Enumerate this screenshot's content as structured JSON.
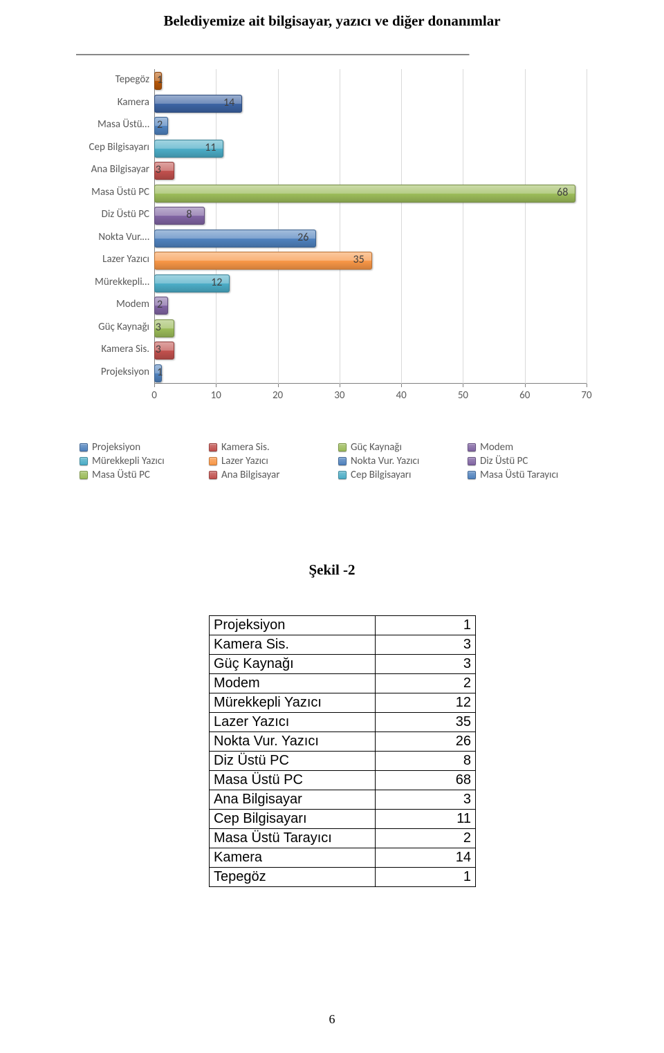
{
  "title": "Belediyemize ait bilgisayar, yazıcı ve diğer donanımlar",
  "figure_caption": "Şekil -2",
  "page_number": "6",
  "chart": {
    "type": "bar-horizontal",
    "xlim": [
      0,
      70
    ],
    "xtick_step": 10,
    "xticks": [
      "0",
      "10",
      "20",
      "30",
      "40",
      "50",
      "60",
      "70"
    ],
    "background_color": "#ffffff",
    "grid_color": "#d9d9d9",
    "axis_color": "#808080",
    "text_color": "#595959",
    "label_fontsize": 15,
    "datalabel_fontsize": 16,
    "datalabel_color": "#404040",
    "categories": [
      {
        "label": "Tepegöz",
        "value": 1,
        "color": "#b65708"
      },
      {
        "label": "Kamera",
        "value": 14,
        "color": "#3c63a2"
      },
      {
        "label": "Masa Üstü…",
        "value": 2,
        "color": "#4f81bd"
      },
      {
        "label": "Cep Bilgisayarı",
        "value": 11,
        "color": "#4bacc6"
      },
      {
        "label": "Ana Bilgisayar",
        "value": 3,
        "color": "#c0504d"
      },
      {
        "label": "Masa Üstü PC",
        "value": 68,
        "color": "#9bbb59"
      },
      {
        "label": "Diz Üstü PC",
        "value": 8,
        "color": "#8064a2"
      },
      {
        "label": "Nokta Vur.…",
        "value": 26,
        "color": "#4f81bd"
      },
      {
        "label": "Lazer Yazıcı",
        "value": 35,
        "color": "#f79646"
      },
      {
        "label": "Mürekkepli…",
        "value": 12,
        "color": "#4bacc6"
      },
      {
        "label": "Modem",
        "value": 2,
        "color": "#8064a2"
      },
      {
        "label": "Güç Kaynağı",
        "value": 3,
        "color": "#9bbb59"
      },
      {
        "label": "Kamera Sis.",
        "value": 3,
        "color": "#c0504d"
      },
      {
        "label": "Projeksiyon",
        "value": 1,
        "color": "#4f81bd"
      }
    ],
    "legend": [
      [
        {
          "label": "Projeksiyon",
          "color": "#4f81bd"
        },
        {
          "label": "Kamera Sis.",
          "color": "#c0504d"
        },
        {
          "label": "Güç Kaynağı",
          "color": "#9bbb59"
        },
        {
          "label": "Modem",
          "color": "#8064a2"
        }
      ],
      [
        {
          "label": "Mürekkepli Yazıcı",
          "color": "#4bacc6"
        },
        {
          "label": "Lazer Yazıcı",
          "color": "#f79646"
        },
        {
          "label": "Nokta Vur. Yazıcı",
          "color": "#4f81bd"
        },
        {
          "label": "Diz Üstü PC",
          "color": "#8064a2"
        }
      ],
      [
        {
          "label": "Masa Üstü PC",
          "color": "#9bbb59"
        },
        {
          "label": "Ana Bilgisayar",
          "color": "#c0504d"
        },
        {
          "label": "Cep Bilgisayarı",
          "color": "#4bacc6"
        },
        {
          "label": "Masa Üstü Tarayıcı",
          "color": "#4f81bd"
        }
      ]
    ]
  },
  "table": {
    "rows": [
      {
        "name": "Projeksiyon",
        "value": "1"
      },
      {
        "name": "Kamera Sis.",
        "value": "3"
      },
      {
        "name": "Güç Kaynağı",
        "value": "3"
      },
      {
        "name": "Modem",
        "value": "2"
      },
      {
        "name": "Mürekkepli Yazıcı",
        "value": "12"
      },
      {
        "name": "Lazer Yazıcı",
        "value": "35"
      },
      {
        "name": "Nokta Vur. Yazıcı",
        "value": "26"
      },
      {
        "name": "Diz Üstü PC",
        "value": "8"
      },
      {
        "name": "Masa Üstü PC",
        "value": "68"
      },
      {
        "name": "Ana Bilgisayar",
        "value": "3"
      },
      {
        "name": "Cep Bilgisayarı",
        "value": "11"
      },
      {
        "name": "Masa Üstü Tarayıcı",
        "value": "2"
      },
      {
        "name": "Kamera",
        "value": "14"
      },
      {
        "name": "Tepegöz",
        "value": "1"
      }
    ]
  }
}
